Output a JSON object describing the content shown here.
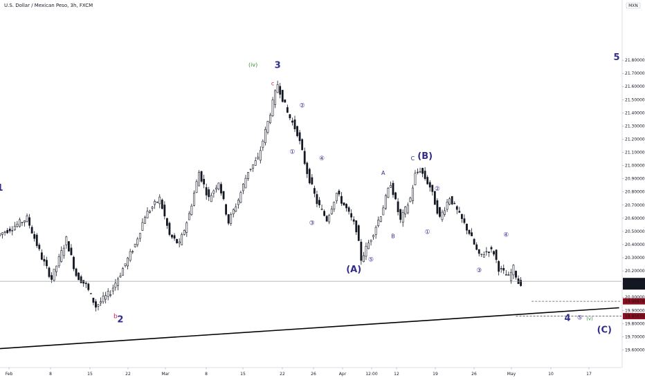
{
  "header": {
    "title": "U.S. Dollar / Mexican Peso, 3h, FXCM"
  },
  "scale_button": {
    "label": "MXN"
  },
  "chart_data": {
    "type": "candlestick",
    "symbol": "USDMXN",
    "timeframe": "3h",
    "ylim": [
      19.55,
      21.85
    ],
    "y_ticks": [
      "21.80000",
      "21.70000",
      "21.60000",
      "21.50000",
      "21.40000",
      "21.30000",
      "21.20000",
      "21.10000",
      "21.00000",
      "20.90000",
      "20.80000",
      "20.70000",
      "20.60000",
      "20.50000",
      "20.40000",
      "20.30000",
      "20.20000",
      "20.10000",
      "20.00000",
      "19.90000",
      "19.80000",
      "19.70000",
      "19.60000"
    ],
    "x_ticks": [
      "Feb",
      "8",
      "15",
      "22",
      "Mar",
      "8",
      "15",
      "22",
      "26",
      "Apr",
      "12:00",
      "12",
      "19",
      "26",
      "May",
      "10",
      "17"
    ],
    "price_path": [
      [
        0,
        20.47
      ],
      [
        3,
        20.53
      ],
      [
        6,
        20.6
      ],
      [
        9,
        20.3
      ],
      [
        11,
        20.14
      ],
      [
        14,
        20.44
      ],
      [
        16,
        20.17
      ],
      [
        18,
        20.09
      ],
      [
        20,
        19.93
      ],
      [
        23,
        20.04
      ],
      [
        25,
        20.18
      ],
      [
        28,
        20.4
      ],
      [
        30,
        20.62
      ],
      [
        33,
        20.75
      ],
      [
        35,
        20.47
      ],
      [
        37,
        20.4
      ],
      [
        39,
        20.63
      ],
      [
        41,
        20.95
      ],
      [
        43,
        20.75
      ],
      [
        45,
        20.88
      ],
      [
        47,
        20.57
      ],
      [
        49,
        20.74
      ],
      [
        51,
        20.96
      ],
      [
        53,
        21.05
      ],
      [
        55,
        21.33
      ],
      [
        57,
        21.62
      ],
      [
        59,
        21.4
      ],
      [
        61,
        21.25
      ],
      [
        63,
        20.95
      ],
      [
        65,
        20.72
      ],
      [
        67,
        20.59
      ],
      [
        69,
        20.79
      ],
      [
        71,
        20.67
      ],
      [
        73,
        20.52
      ],
      [
        74,
        20.29
      ],
      [
        76,
        20.45
      ],
      [
        78,
        20.63
      ],
      [
        80,
        20.87
      ],
      [
        82,
        20.58
      ],
      [
        84,
        20.75
      ],
      [
        85,
        20.93
      ],
      [
        86,
        20.97
      ],
      [
        88,
        20.84
      ],
      [
        90,
        20.6
      ],
      [
        92,
        20.76
      ],
      [
        94,
        20.62
      ],
      [
        96,
        20.49
      ],
      [
        98,
        20.31
      ],
      [
        100,
        20.36
      ],
      [
        101,
        20.34
      ],
      [
        102,
        20.22
      ],
      [
        104,
        20.15
      ],
      [
        105,
        20.22
      ],
      [
        106,
        20.11
      ]
    ],
    "current_price": {
      "value": 20.1209,
      "label": "20.12090",
      "timer": "31:55"
    },
    "levels": [
      {
        "value": 19.96876,
        "label": "19.96876",
        "color": "#8e0e1d"
      },
      {
        "value": 19.85635,
        "label": "19.85635",
        "color": "#8e0e1d"
      }
    ],
    "trendline": {
      "from": [
        0,
        19.61
      ],
      "to": [
        126,
        19.92
      ],
      "color": "#000000"
    },
    "wave_labels": [
      {
        "text": "1",
        "x": 0,
        "y": 20.81,
        "color": "#2f2d89",
        "size": 13
      },
      {
        "text": "b",
        "x": 23.5,
        "y": 19.84,
        "color": "#c2185b",
        "size": 9
      },
      {
        "text": "2",
        "x": 24.5,
        "y": 19.81,
        "color": "#2f2d89",
        "size": 13
      },
      {
        "text": "(iv)",
        "x": 51.5,
        "y": 21.75,
        "color": "#388e3c",
        "size": 8
      },
      {
        "text": "3",
        "x": 56.5,
        "y": 21.74,
        "color": "#2f2d89",
        "size": 13
      },
      {
        "text": "c",
        "x": 55.5,
        "y": 21.61,
        "color": "#c2185b",
        "size": 8
      },
      {
        "text": "①",
        "x": 59.5,
        "y": 21.09,
        "color": "#2f2d89",
        "size": 9
      },
      {
        "text": "②",
        "x": 61.5,
        "y": 21.44,
        "color": "#2f2d89",
        "size": 9
      },
      {
        "text": "③",
        "x": 63.5,
        "y": 20.55,
        "color": "#2f2d89",
        "size": 9
      },
      {
        "text": "④",
        "x": 65.5,
        "y": 21.04,
        "color": "#2f2d89",
        "size": 9
      },
      {
        "text": "(A)",
        "x": 72,
        "y": 20.19,
        "color": "#2f2d89",
        "size": 13
      },
      {
        "text": "⑤",
        "x": 75.5,
        "y": 20.27,
        "color": "#2f2d89",
        "size": 9
      },
      {
        "text": "A",
        "x": 78,
        "y": 20.93,
        "color": "#2f2d89",
        "size": 8
      },
      {
        "text": "B",
        "x": 80,
        "y": 20.45,
        "color": "#2f2d89",
        "size": 8
      },
      {
        "text": "C",
        "x": 84,
        "y": 21.04,
        "color": "#2f2d89",
        "size": 8
      },
      {
        "text": "(B)",
        "x": 86.5,
        "y": 21.05,
        "color": "#2f2d89",
        "size": 13
      },
      {
        "text": "①",
        "x": 87,
        "y": 20.48,
        "color": "#2f2d89",
        "size": 9
      },
      {
        "text": "②",
        "x": 89,
        "y": 20.81,
        "color": "#2f2d89",
        "size": 9
      },
      {
        "text": "③",
        "x": 97.5,
        "y": 20.19,
        "color": "#2f2d89",
        "size": 9
      },
      {
        "text": "④",
        "x": 103,
        "y": 20.46,
        "color": "#2f2d89",
        "size": 9
      },
      {
        "text": "4",
        "x": 115.5,
        "y": 19.82,
        "color": "#2f2d89",
        "size": 13
      },
      {
        "text": "⑤",
        "x": 118,
        "y": 19.83,
        "color": "#2f2d89",
        "size": 9
      },
      {
        "text": "(v)",
        "x": 120,
        "y": 19.825,
        "color": "#388e3c",
        "size": 7
      },
      {
        "text": "(C)",
        "x": 123,
        "y": 19.73,
        "color": "#2f2d89",
        "size": 13
      },
      {
        "text": "5",
        "x": 125.5,
        "y": 21.8,
        "color": "#2f2d89",
        "size": 13
      }
    ]
  },
  "colors": {
    "background": "#ffffff",
    "candle": "#131722",
    "axis_text": "#131722",
    "current_price_bg": "#131722",
    "level_bg": "#8e0e1d"
  }
}
